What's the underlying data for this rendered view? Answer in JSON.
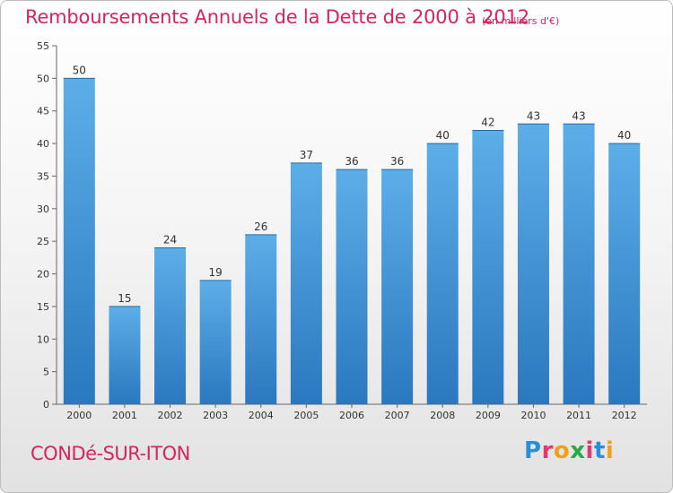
{
  "chart_data": {
    "type": "bar",
    "title": "Remboursements Annuels de la Dette de 2000 à 2012",
    "subtitle": "(en milliers d'€)",
    "categories": [
      "2000",
      "2001",
      "2002",
      "2003",
      "2004",
      "2005",
      "2006",
      "2007",
      "2008",
      "2009",
      "2010",
      "2011",
      "2012"
    ],
    "values": [
      50,
      15,
      24,
      19,
      26,
      37,
      36,
      36,
      40,
      42,
      43,
      43,
      40
    ],
    "xlabel": "",
    "ylabel": "",
    "ylim": [
      0,
      55
    ],
    "yticks": [
      0,
      5,
      10,
      15,
      20,
      25,
      30,
      35,
      40,
      45,
      50,
      55
    ],
    "grid": false,
    "bar_color": "#3a8fd6"
  },
  "footer": {
    "commune": "CONDé-SUR-ITON",
    "logo_letters": [
      "P",
      "r",
      "o",
      "x",
      "i",
      "t",
      "i"
    ],
    "logo_colors": [
      "#2a8fd8",
      "#e23a6e",
      "#f0a020",
      "#2aa84a",
      "#e23a6e",
      "#2a8fd8",
      "#f0a020"
    ]
  }
}
